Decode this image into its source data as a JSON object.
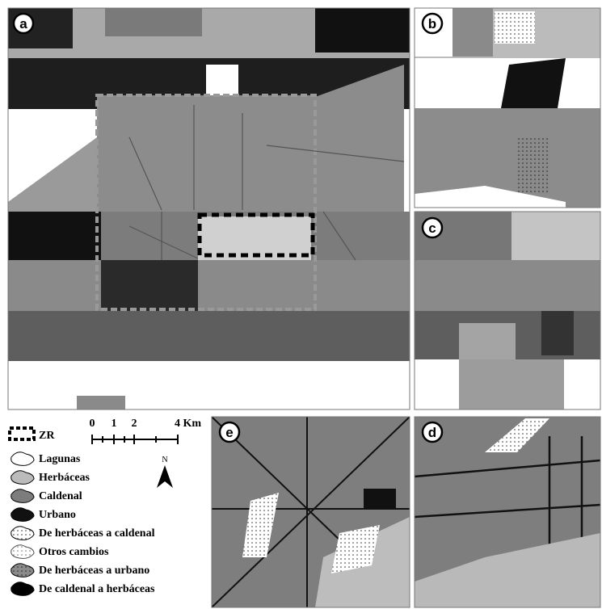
{
  "panels": [
    {
      "label": "a"
    },
    {
      "label": "b"
    },
    {
      "label": "c"
    },
    {
      "label": "d"
    },
    {
      "label": "e"
    }
  ],
  "legend": {
    "items": [
      {
        "label": "ZR"
      },
      {
        "label": "Lagunas"
      },
      {
        "label": "Herbáceas"
      },
      {
        "label": "Caldenal"
      },
      {
        "label": "Urbano"
      },
      {
        "label": "De herbáceas a caldenal"
      },
      {
        "label": "Otros cambios"
      },
      {
        "label": "De herbáceas a urbano"
      },
      {
        "label": "De caldenal a herbáceas"
      }
    ]
  },
  "scale_bar": {
    "labels": [
      "0",
      "1",
      "2",
      "4 Km"
    ]
  },
  "north_arrow": {
    "label": "N"
  }
}
